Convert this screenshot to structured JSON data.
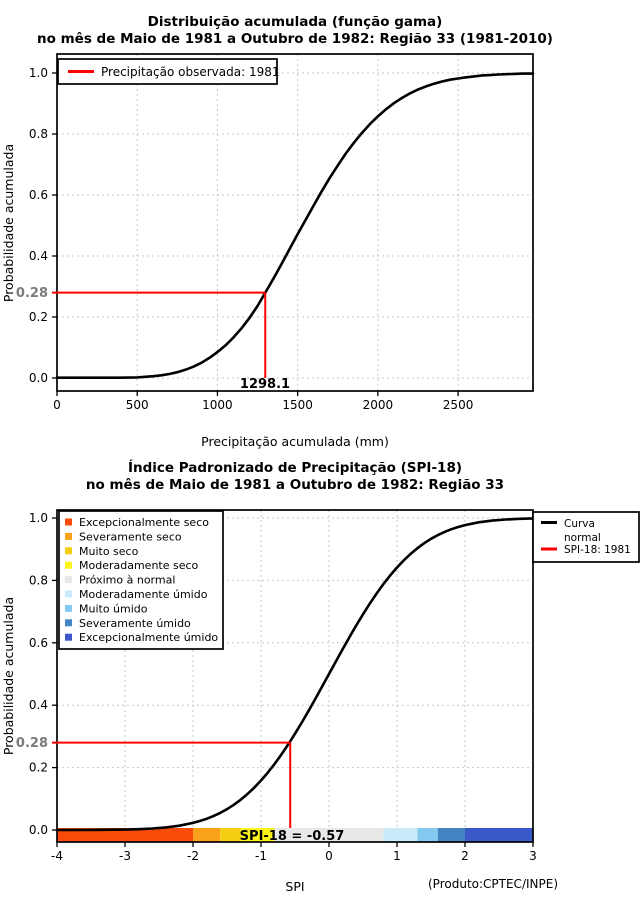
{
  "chart_data": [
    {
      "type": "line",
      "title": "Distribuição acumulada (função gama)",
      "subtitle": "no mês de Maio de 1981 a Outubro de 1982: Região 33 (1981-2010)",
      "xlabel": "Precipitação acumulada (mm)",
      "ylabel": "Probabilidade acumulada",
      "xlim": [
        0,
        2967
      ],
      "ylim": [
        0,
        1
      ],
      "grid": true,
      "grid_color": "#C7C7C7",
      "x_ticks": {
        "values": [
          0,
          500,
          1000,
          1500,
          2000,
          2500
        ],
        "labels": [
          "0",
          "500",
          "1000",
          "1500",
          "2000",
          "2500"
        ]
      },
      "y_ticks": {
        "values": [
          0,
          0.2,
          0.4,
          0.6,
          0.8,
          1
        ],
        "labels": [
          "0.0",
          "0.2",
          "0.4",
          "0.6",
          "0.8",
          "1.0"
        ]
      },
      "curve": {
        "name": "gamma-cdf-curve",
        "color": "#000000",
        "points": [
          [
            0,
            0.001
          ],
          [
            200,
            0.001
          ],
          [
            400,
            0.001
          ],
          [
            500,
            0.002
          ],
          [
            550,
            0.004
          ],
          [
            600,
            0.006
          ],
          [
            650,
            0.009
          ],
          [
            700,
            0.013
          ],
          [
            750,
            0.019
          ],
          [
            800,
            0.027
          ],
          [
            850,
            0.037
          ],
          [
            900,
            0.05
          ],
          [
            950,
            0.066
          ],
          [
            1000,
            0.085
          ],
          [
            1050,
            0.107
          ],
          [
            1100,
            0.133
          ],
          [
            1150,
            0.163
          ],
          [
            1200,
            0.197
          ],
          [
            1250,
            0.236
          ],
          [
            1298.1,
            0.28
          ],
          [
            1350,
            0.327
          ],
          [
            1400,
            0.374
          ],
          [
            1450,
            0.423
          ],
          [
            1500,
            0.471
          ],
          [
            1550,
            0.519
          ],
          [
            1600,
            0.566
          ],
          [
            1650,
            0.612
          ],
          [
            1700,
            0.656
          ],
          [
            1750,
            0.697
          ],
          [
            1800,
            0.736
          ],
          [
            1850,
            0.771
          ],
          [
            1900,
            0.803
          ],
          [
            1950,
            0.832
          ],
          [
            2000,
            0.858
          ],
          [
            2050,
            0.881
          ],
          [
            2100,
            0.901
          ],
          [
            2150,
            0.918
          ],
          [
            2200,
            0.933
          ],
          [
            2250,
            0.946
          ],
          [
            2300,
            0.956
          ],
          [
            2350,
            0.965
          ],
          [
            2400,
            0.972
          ],
          [
            2450,
            0.978
          ],
          [
            2500,
            0.982
          ],
          [
            2550,
            0.986
          ],
          [
            2600,
            0.989
          ],
          [
            2650,
            0.992
          ],
          [
            2700,
            0.993
          ],
          [
            2750,
            0.995
          ],
          [
            2800,
            0.996
          ],
          [
            2850,
            0.997
          ],
          [
            2900,
            0.998
          ],
          [
            2967,
            0.998
          ]
        ]
      },
      "reference": {
        "x": 1298.1,
        "y": 0.28,
        "x_label": "1298.1",
        "y_label": "0.28",
        "color": "#FF0000"
      },
      "legend": {
        "position": "top-left",
        "items": [
          {
            "label": "Precipitação observada: 1981",
            "color": "#FF0000"
          }
        ]
      }
    },
    {
      "type": "line",
      "title": "Índice Padronizado de Precipitação (SPI-18)",
      "subtitle": "no mês de Maio de 1981 a Outubro de 1982: Região 33",
      "xlabel": "SPI",
      "ylabel": "Probabilidade acumulada",
      "xlim": [
        -4,
        3
      ],
      "ylim": [
        0,
        1
      ],
      "grid": true,
      "grid_color": "#C7C7C7",
      "x_ticks": {
        "values": [
          -4,
          -3,
          -2,
          -1,
          0,
          1,
          2,
          3
        ],
        "labels": [
          "-4",
          "-3",
          "-2",
          "-1",
          "0",
          "1",
          "2",
          "3"
        ]
      },
      "y_ticks": {
        "values": [
          0,
          0.2,
          0.4,
          0.6,
          0.8,
          1
        ],
        "labels": [
          "0.0",
          "0.2",
          "0.4",
          "0.6",
          "0.8",
          "1.0"
        ]
      },
      "curve": {
        "name": "normal-cdf-curve",
        "color": "#000000",
        "points": [
          [
            -4,
            0.0001
          ],
          [
            -3.5,
            0.0002
          ],
          [
            -3,
            0.0013
          ],
          [
            -2.8,
            0.0026
          ],
          [
            -2.6,
            0.0047
          ],
          [
            -2.4,
            0.0082
          ],
          [
            -2.2,
            0.0139
          ],
          [
            -2,
            0.0228
          ],
          [
            -1.9,
            0.0287
          ],
          [
            -1.8,
            0.0359
          ],
          [
            -1.7,
            0.0446
          ],
          [
            -1.6,
            0.0548
          ],
          [
            -1.5,
            0.0668
          ],
          [
            -1.4,
            0.0808
          ],
          [
            -1.3,
            0.0968
          ],
          [
            -1.2,
            0.1151
          ],
          [
            -1.1,
            0.1357
          ],
          [
            -1,
            0.1587
          ],
          [
            -0.9,
            0.1841
          ],
          [
            -0.8,
            0.2119
          ],
          [
            -0.7,
            0.242
          ],
          [
            -0.6,
            0.2743
          ],
          [
            -0.57,
            0.2843
          ],
          [
            -0.5,
            0.3085
          ],
          [
            -0.4,
            0.3446
          ],
          [
            -0.3,
            0.3821
          ],
          [
            -0.2,
            0.4207
          ],
          [
            -0.1,
            0.4602
          ],
          [
            0,
            0.5
          ],
          [
            0.1,
            0.5398
          ],
          [
            0.2,
            0.5793
          ],
          [
            0.3,
            0.6179
          ],
          [
            0.4,
            0.6554
          ],
          [
            0.5,
            0.6915
          ],
          [
            0.6,
            0.7257
          ],
          [
            0.7,
            0.758
          ],
          [
            0.8,
            0.7881
          ],
          [
            0.9,
            0.8159
          ],
          [
            1,
            0.8413
          ],
          [
            1.1,
            0.8643
          ],
          [
            1.2,
            0.8849
          ],
          [
            1.3,
            0.9032
          ],
          [
            1.4,
            0.9192
          ],
          [
            1.5,
            0.9332
          ],
          [
            1.6,
            0.9452
          ],
          [
            1.7,
            0.9554
          ],
          [
            1.8,
            0.9641
          ],
          [
            1.9,
            0.9713
          ],
          [
            2,
            0.9772
          ],
          [
            2.2,
            0.9861
          ],
          [
            2.4,
            0.9918
          ],
          [
            2.6,
            0.9953
          ],
          [
            2.8,
            0.9974
          ],
          [
            3,
            0.9987
          ]
        ]
      },
      "reference": {
        "x": -0.57,
        "y": 0.28,
        "y_label": "0.28",
        "annotation": "SPI-18 = -0.57",
        "color": "#FF0000"
      },
      "line_legend": {
        "position": "top-right",
        "items": [
          {
            "lines": [
              "Curva",
              "normal"
            ],
            "color": "#000000"
          },
          {
            "lines": [
              "SPI-18: 1981"
            ],
            "color": "#FF0000"
          }
        ]
      },
      "category_legend": {
        "position": "top-left",
        "items": [
          {
            "label": "Excepcionalmente seco",
            "color": "#F94B0A"
          },
          {
            "label": "Severamente seco",
            "color": "#F9A11B"
          },
          {
            "label": "Muito seco",
            "color": "#F4CE12"
          },
          {
            "label": "Moderadamente seco",
            "color": "#FCF318"
          },
          {
            "label": "Próximo à normal",
            "color": "#E8E8E8"
          },
          {
            "label": "Moderadamente úmido",
            "color": "#C9EAF9"
          },
          {
            "label": "Muito úmido",
            "color": "#84C9F0"
          },
          {
            "label": "Severamente úmido",
            "color": "#4384C2"
          },
          {
            "label": "Excepcionalmente úmido",
            "color": "#3A58C8"
          }
        ]
      },
      "color_bar": {
        "segments": [
          {
            "from": -4,
            "to": -2,
            "color": "#F94B0A"
          },
          {
            "from": -2,
            "to": -1.6,
            "color": "#F9A11B"
          },
          {
            "from": -1.6,
            "to": -1.3,
            "color": "#F4CE12"
          },
          {
            "from": -1.3,
            "to": -0.8,
            "color": "#FCF318"
          },
          {
            "from": -0.8,
            "to": 0.8,
            "color": "#E8E8E8"
          },
          {
            "from": 0.8,
            "to": 1.3,
            "color": "#C9EAF9"
          },
          {
            "from": 1.3,
            "to": 1.6,
            "color": "#84C9F0"
          },
          {
            "from": 1.6,
            "to": 2,
            "color": "#4384C2"
          },
          {
            "from": 2,
            "to": 3,
            "color": "#3A58C8"
          }
        ]
      },
      "footnote": "(Produto:CPTEC/INPE)"
    }
  ]
}
